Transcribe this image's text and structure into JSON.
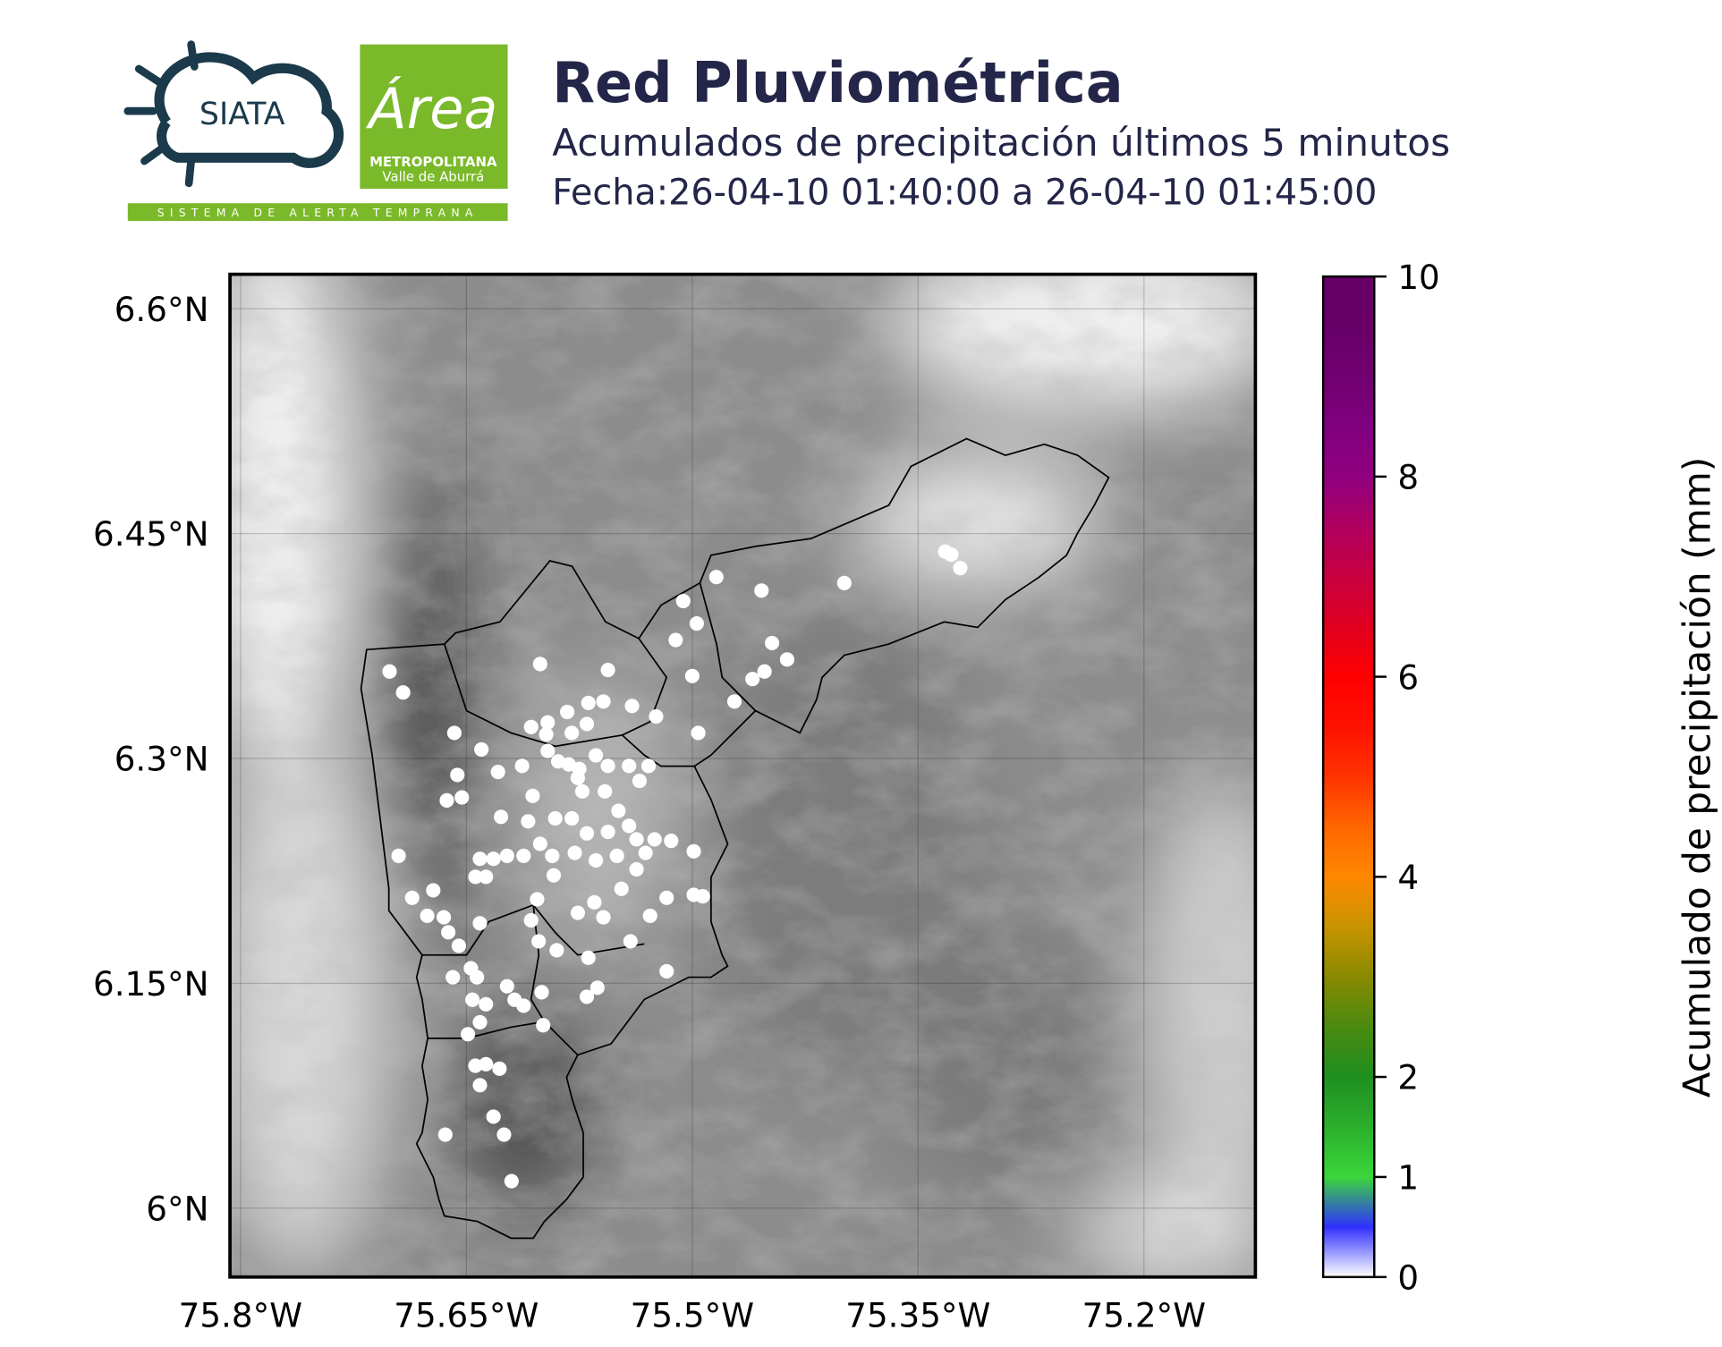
{
  "header": {
    "logo_siata": "SIATA",
    "logo_area": "Área",
    "logo_metro": "METROPOLITANA",
    "logo_valle": "Valle de Aburrá",
    "logo_band": "SISTEMA DE ALERTA TEMPRANA"
  },
  "chart_data": {
    "type": "scatter",
    "title": "Red Pluviométrica",
    "subtitle": "Acumulados de precipitación últimos 5 minutos",
    "date": "Fecha:26-04-10 01:40:00 a 26-04-10 01:45:00",
    "xlim": [
      -75.807,
      -75.126
    ],
    "ylim": [
      5.954,
      6.623
    ],
    "xticks": [
      {
        "value": -75.8,
        "label": "75.8°W"
      },
      {
        "value": -75.65,
        "label": "75.65°W"
      },
      {
        "value": -75.5,
        "label": "75.5°W"
      },
      {
        "value": -75.35,
        "label": "75.35°W"
      },
      {
        "value": -75.2,
        "label": "75.2°W"
      }
    ],
    "yticks": [
      {
        "value": 6.0,
        "label": "6°N"
      },
      {
        "value": 6.15,
        "label": "6.15°N"
      },
      {
        "value": 6.3,
        "label": "6.3°N"
      },
      {
        "value": 6.45,
        "label": "6.45°N"
      },
      {
        "value": 6.6,
        "label": "6.6°N"
      }
    ],
    "grid": true,
    "color": "#ffffff",
    "x": [
      -75.701,
      -75.692,
      -75.658,
      -75.64,
      -75.601,
      -75.556,
      -75.506,
      -75.484,
      -75.454,
      -75.399,
      -75.332,
      -75.328,
      -75.322,
      -75.497,
      -75.511,
      -75.447,
      -75.437,
      -75.46,
      -75.452,
      -75.472,
      -75.5,
      -75.524,
      -75.496,
      -75.54,
      -75.559,
      -75.569,
      -75.583,
      -75.596,
      -75.597,
      -75.58,
      -75.57,
      -75.629,
      -75.613,
      -75.656,
      -75.653,
      -75.663,
      -75.596,
      -75.589,
      -75.582,
      -75.575,
      -75.564,
      -75.556,
      -75.542,
      -75.535,
      -75.529,
      -75.576,
      -75.573,
      -75.558,
      -75.606,
      -75.627,
      -75.609,
      -75.591,
      -75.58,
      -75.57,
      -75.556,
      -75.542,
      -75.537,
      -75.531,
      -75.514,
      -75.499,
      -75.695,
      -75.686,
      -75.672,
      -75.676,
      -75.665,
      -75.641,
      -75.632,
      -75.644,
      -75.637,
      -75.623,
      -75.612,
      -75.601,
      -75.593,
      -75.578,
      -75.564,
      -75.55,
      -75.537,
      -75.517,
      -75.499,
      -75.493,
      -75.547,
      -75.565,
      -75.576,
      -75.592,
      -75.603,
      -75.607,
      -75.602,
      -75.641,
      -75.655,
      -75.662,
      -75.647,
      -75.659,
      -75.643,
      -75.646,
      -75.637,
      -75.623,
      -75.618,
      -75.612,
      -75.6,
      -75.599,
      -75.59,
      -75.569,
      -75.563,
      -75.57,
      -75.517,
      -75.528,
      -75.541,
      -75.559,
      -75.649,
      -75.641,
      -75.644,
      -75.637,
      -75.628,
      -75.641,
      -75.632,
      -75.625,
      -75.664,
      -75.62,
      -75.525,
      -75.549,
      -75.607
    ],
    "y": [
      6.358,
      6.344,
      6.317,
      6.306,
      6.363,
      6.359,
      6.405,
      6.421,
      6.412,
      6.417,
      6.438,
      6.436,
      6.427,
      6.39,
      6.379,
      6.377,
      6.366,
      6.353,
      6.358,
      6.338,
      6.355,
      6.328,
      6.317,
      6.335,
      6.338,
      6.337,
      6.331,
      6.324,
      6.316,
      6.317,
      6.323,
      6.291,
      6.295,
      6.289,
      6.274,
      6.272,
      6.305,
      6.298,
      6.296,
      6.293,
      6.302,
      6.295,
      6.295,
      6.285,
      6.295,
      6.287,
      6.278,
      6.278,
      6.275,
      6.261,
      6.258,
      6.26,
      6.26,
      6.25,
      6.251,
      6.255,
      6.246,
      6.237,
      6.245,
      6.238,
      6.235,
      6.207,
      6.212,
      6.195,
      6.194,
      6.233,
      6.233,
      6.221,
      6.221,
      6.235,
      6.235,
      6.243,
      6.235,
      6.237,
      6.232,
      6.235,
      6.226,
      6.207,
      6.209,
      6.208,
      6.213,
      6.204,
      6.197,
      6.222,
      6.206,
      6.192,
      6.178,
      6.19,
      6.175,
      6.184,
      6.16,
      6.154,
      6.154,
      6.139,
      6.136,
      6.148,
      6.139,
      6.135,
      6.144,
      6.122,
      6.172,
      6.167,
      6.147,
      6.141,
      6.158,
      6.195,
      6.178,
      6.194,
      6.116,
      6.124,
      6.095,
      6.096,
      6.093,
      6.082,
      6.061,
      6.049,
      6.049,
      6.018,
      6.246,
      6.265,
      6.321
    ],
    "colorbar": {
      "label": "Acumulado de precipitación (mm)",
      "lim": [
        0,
        10
      ],
      "ticks": [
        0,
        1,
        2,
        4,
        6,
        8,
        10
      ],
      "colors": [
        "#ffffff",
        "#3030ff",
        "#3ad63a",
        "#2cb02c",
        "#1f8f1f",
        "#4a8a10",
        "#8a8a00",
        "#c89400",
        "#ff8800",
        "#ff6600",
        "#ff3300",
        "#ff1100",
        "#ff0000",
        "#e00020",
        "#c80040",
        "#b00060",
        "#900080",
        "#800080",
        "#700070",
        "#680068",
        "#660066"
      ]
    }
  }
}
